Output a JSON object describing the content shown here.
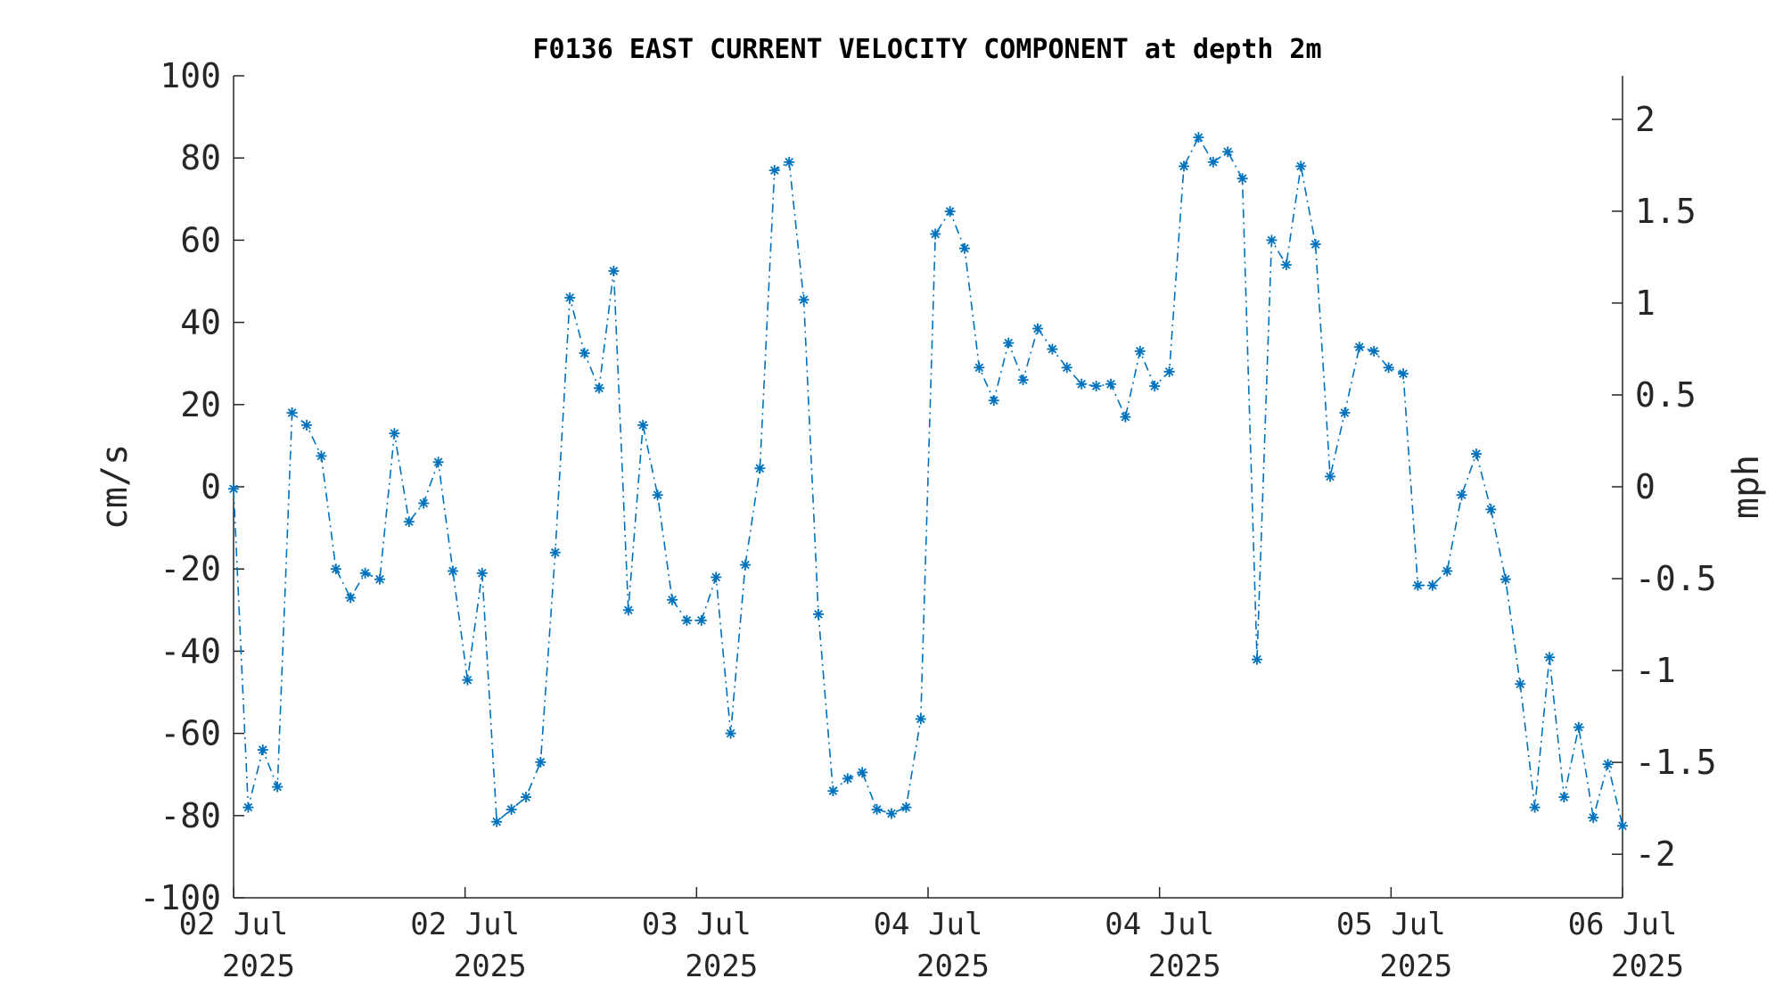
{
  "chart_data": {
    "type": "line",
    "title": "F0136 EAST CURRENT VELOCITY COMPONENT at depth 2m",
    "ylabel": "cm/s",
    "ylabel_right": "mph",
    "ylim": [
      -100,
      100
    ],
    "yticks": [
      "100",
      "80",
      "60",
      "40",
      "20",
      "0",
      "-20",
      "-40",
      "-60",
      "-80",
      "-100"
    ],
    "ylim_right": [
      -2.237,
      2.237
    ],
    "yticks_right": [
      "2",
      "1.5",
      "1",
      "0.5",
      "0",
      "-0.5",
      "-1",
      "-1.5",
      "-2"
    ],
    "xticks": [
      {
        "day": "02 Jul",
        "year": "2025"
      },
      {
        "day": "02 Jul",
        "year": "2025"
      },
      {
        "day": "03 Jul",
        "year": "2025"
      },
      {
        "day": "04 Jul",
        "year": "2025"
      },
      {
        "day": "04 Jul",
        "year": "2025"
      },
      {
        "day": "05 Jul",
        "year": "2025"
      },
      {
        "day": "06 Jul",
        "year": "2025"
      }
    ],
    "grid": false,
    "marker": "*",
    "line_style": "dash-dot",
    "color": "#0072BD",
    "series": [
      {
        "values": [
          -0.5,
          -78,
          -64,
          -73,
          18,
          15,
          7.5,
          -20,
          -27,
          -21,
          -22.5,
          13,
          -8.5,
          -4,
          6,
          -20.5,
          -47,
          -21,
          -81.5,
          -78.5,
          -75.5,
          -67,
          -16,
          46,
          32.5,
          24,
          52.5,
          -30,
          15,
          -2,
          -27.5,
          -32.5,
          -32.5,
          -22,
          -60,
          -19,
          4.5,
          77,
          79,
          45.5,
          -31,
          -74,
          -71,
          -69.5,
          -78.5,
          -79.5,
          -78,
          -56.5,
          61.5,
          67,
          58,
          29,
          21,
          35,
          26,
          38.5,
          33.5,
          29,
          25,
          24.5,
          25,
          17,
          33,
          24.5,
          28,
          78,
          85,
          79,
          81.5,
          75,
          -42,
          60,
          54,
          78,
          59,
          2.5,
          18,
          34,
          33,
          29,
          27.5,
          -24,
          -24,
          -20.5,
          -2,
          8,
          -5.5,
          -22.5,
          -48,
          -78,
          -41.5,
          -75.5,
          -58.5,
          -80.5,
          -67.5,
          -82.5
        ]
      }
    ]
  }
}
